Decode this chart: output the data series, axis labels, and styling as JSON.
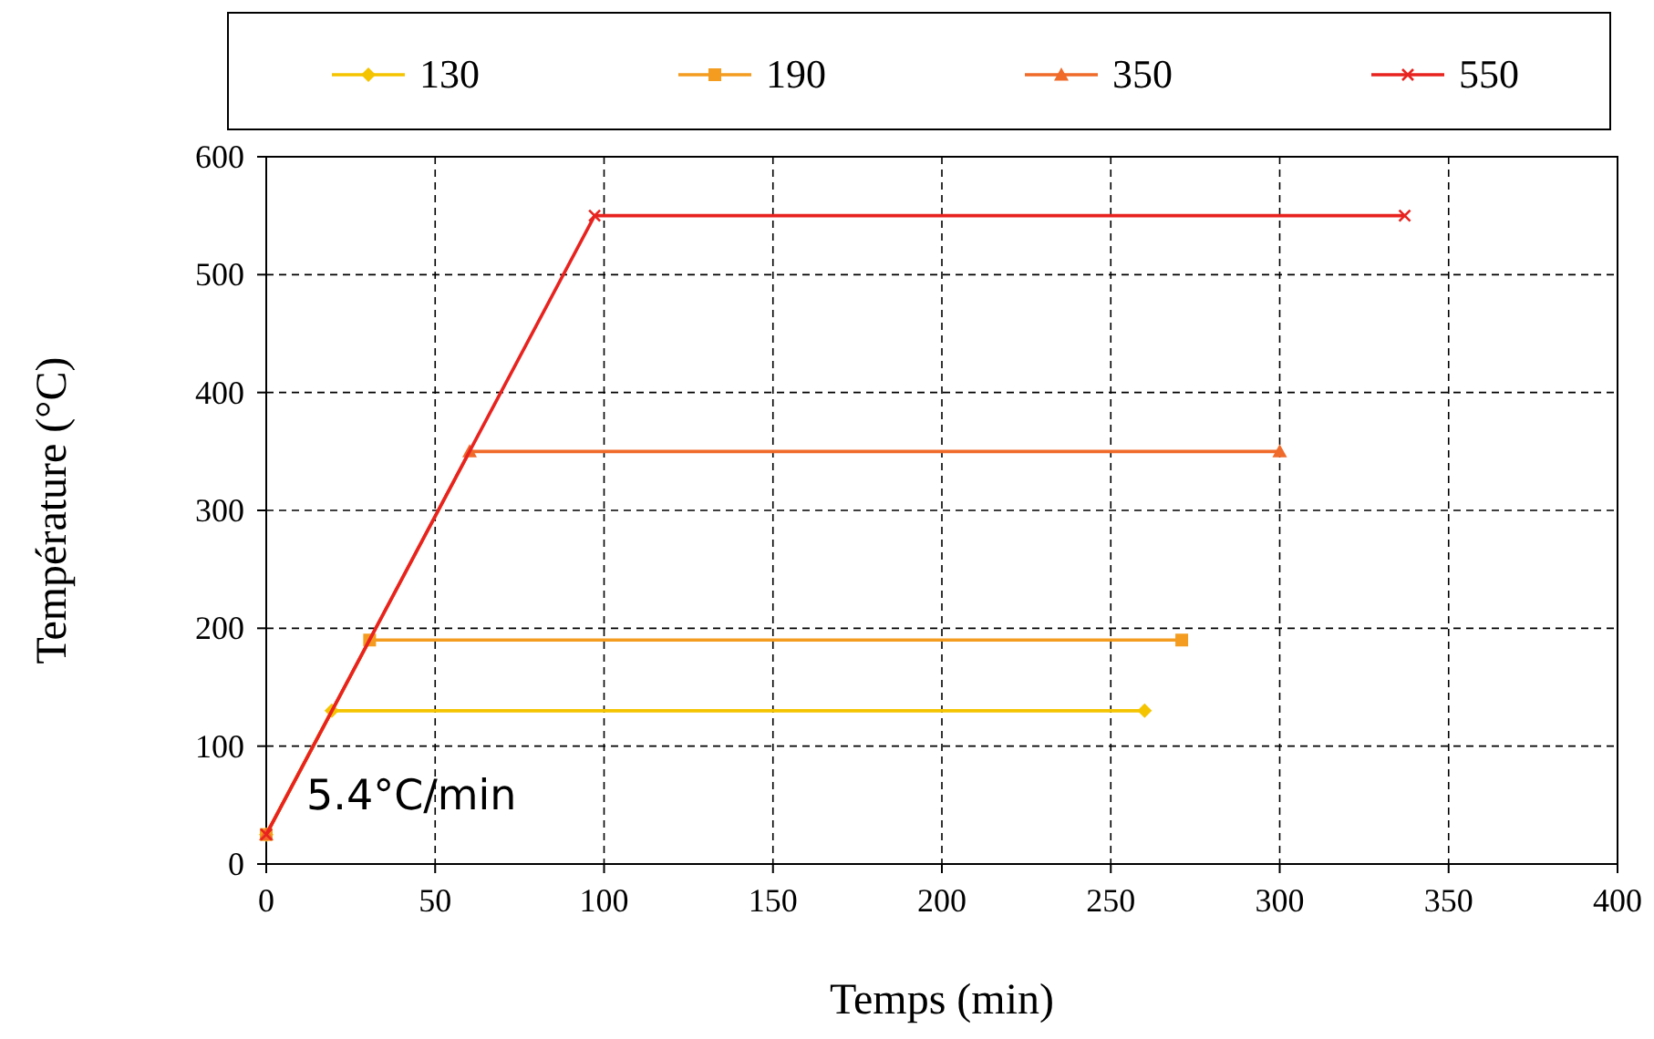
{
  "chart_data": {
    "type": "line",
    "xlabel": "Temps (min)",
    "ylabel": "Température (°C)",
    "xlim": [
      0,
      400
    ],
    "ylim": [
      0,
      600
    ],
    "xticks": [
      0,
      50,
      100,
      150,
      200,
      250,
      300,
      350,
      400
    ],
    "yticks": [
      0,
      100,
      200,
      300,
      400,
      500,
      600
    ],
    "grid": true,
    "legend": "top",
    "line_style": "solid",
    "annotations": [
      "5.4°C/min"
    ],
    "series": [
      {
        "name": "130",
        "color": "#f5c400",
        "marker": "diamond",
        "x": [
          0,
          19.4,
          260
        ],
        "values": [
          25,
          130,
          130
        ]
      },
      {
        "name": "190",
        "color": "#f39c1f",
        "marker": "square",
        "x": [
          0,
          30.6,
          271
        ],
        "values": [
          25,
          190,
          190
        ]
      },
      {
        "name": "350",
        "color": "#f06a2a",
        "marker": "triangle",
        "x": [
          0,
          60.2,
          300
        ],
        "values": [
          25,
          350,
          350
        ]
      },
      {
        "name": "550",
        "color": "#e8231f",
        "marker": "cross",
        "x": [
          0,
          97.2,
          337
        ],
        "values": [
          25,
          550,
          550
        ]
      }
    ]
  }
}
